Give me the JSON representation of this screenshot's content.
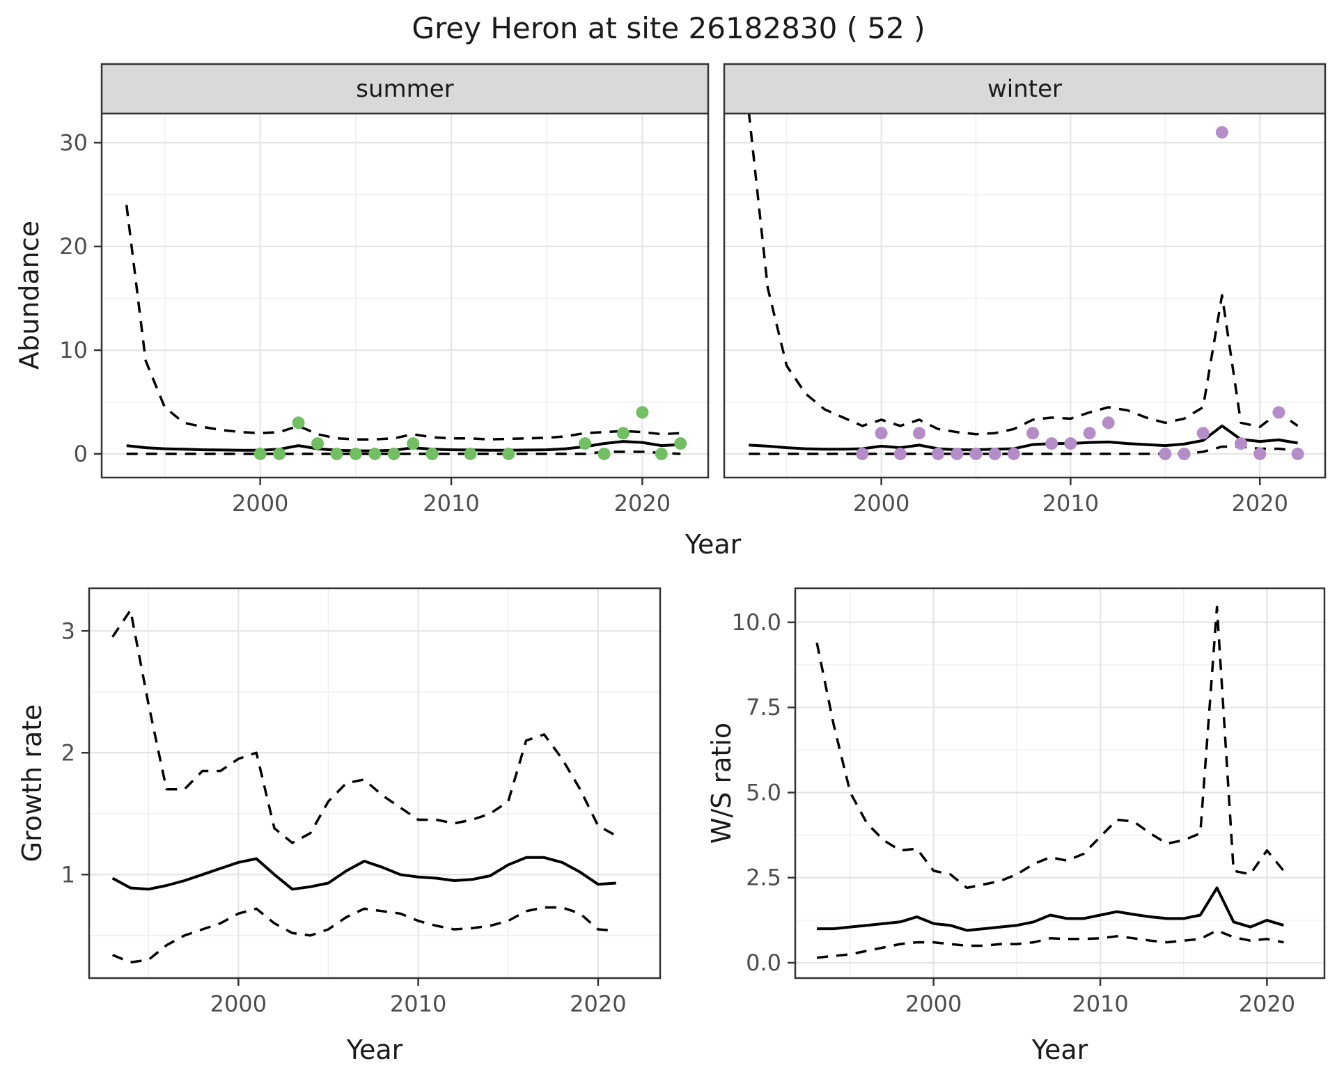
{
  "title": "Grey Heron at site 26182830 ( 52 )",
  "facets": [
    "summer",
    "winter"
  ],
  "axis_labels": {
    "abundance": "Abundance",
    "year": "Year",
    "growth": "Growth rate",
    "ws": "W/S ratio"
  },
  "colors": {
    "summer_point": "#72bf63",
    "winter_point": "#b48cc8",
    "line": "#000000",
    "grid_major": "#e4e4e4",
    "grid_minor": "#f0f0f0",
    "strip_bg": "#d9d9d9",
    "panel_border": "#333333",
    "tick_text": "#4d4d4d",
    "title_text": "#1a1a1a"
  },
  "chart_data": [
    {
      "type": "line",
      "facet": "summer",
      "title": "summer",
      "xlabel": "Year",
      "ylabel": "Abundance",
      "xlim": [
        1991.7,
        2023.45
      ],
      "ylim": [
        -2.28,
        32.82
      ],
      "grid": true,
      "xticks": {
        "major": [
          2000,
          2010,
          2020
        ],
        "minor": [
          1995,
          2005,
          2015
        ],
        "labels": [
          "2000",
          "2010",
          "2020"
        ]
      },
      "yticks": {
        "major": [
          0,
          10,
          20,
          30
        ],
        "minor": [
          5,
          15,
          25
        ],
        "labels": [
          "0",
          "10",
          "20",
          "30"
        ]
      },
      "x": [
        1993,
        1994,
        1995,
        1996,
        1997,
        1998,
        1999,
        2000,
        2001,
        2002,
        2003,
        2004,
        2005,
        2006,
        2007,
        2008,
        2009,
        2010,
        2011,
        2012,
        2013,
        2014,
        2015,
        2016,
        2017,
        2018,
        2019,
        2020,
        2021,
        2022
      ],
      "series": [
        {
          "name": "median_fit",
          "style": "solid",
          "values": [
            0.8,
            0.6,
            0.5,
            0.45,
            0.4,
            0.38,
            0.36,
            0.35,
            0.45,
            0.8,
            0.5,
            0.35,
            0.3,
            0.3,
            0.35,
            0.6,
            0.45,
            0.4,
            0.38,
            0.35,
            0.35,
            0.38,
            0.4,
            0.5,
            0.7,
            1.0,
            1.2,
            1.1,
            0.8,
            0.9
          ]
        },
        {
          "name": "upper_95ci",
          "style": "dashed",
          "values": [
            24,
            9,
            4.5,
            3.0,
            2.6,
            2.3,
            2.1,
            2.0,
            2.1,
            2.7,
            1.9,
            1.5,
            1.4,
            1.4,
            1.5,
            1.9,
            1.6,
            1.5,
            1.5,
            1.4,
            1.45,
            1.5,
            1.55,
            1.7,
            2.0,
            2.1,
            2.2,
            2.1,
            1.9,
            2.0
          ]
        },
        {
          "name": "lower_95ci",
          "style": "dashed",
          "values": [
            0,
            0,
            0,
            0,
            0,
            0,
            0,
            0,
            0,
            0,
            0,
            0,
            0,
            0,
            0,
            0,
            0,
            0,
            0,
            0,
            0,
            0,
            0,
            0,
            0,
            0.2,
            0.2,
            0.2,
            0.1,
            0
          ]
        }
      ],
      "points": {
        "name": "observed_summer_counts",
        "color_key": "summer_point",
        "data": [
          [
            2000,
            0
          ],
          [
            2001,
            0
          ],
          [
            2002,
            3
          ],
          [
            2003,
            1
          ],
          [
            2004,
            0
          ],
          [
            2005,
            0
          ],
          [
            2006,
            0
          ],
          [
            2007,
            0
          ],
          [
            2008,
            1
          ],
          [
            2009,
            0
          ],
          [
            2011,
            0
          ],
          [
            2013,
            0
          ],
          [
            2017,
            1
          ],
          [
            2018,
            0
          ],
          [
            2019,
            2
          ],
          [
            2020,
            4
          ],
          [
            2021,
            0
          ],
          [
            2022,
            1
          ]
        ]
      }
    },
    {
      "type": "line",
      "facet": "winter",
      "title": "winter",
      "xlabel": "Year",
      "ylabel": "Abundance",
      "xlim": [
        1991.7,
        2023.45
      ],
      "ylim": [
        -2.28,
        32.82
      ],
      "grid": true,
      "xticks": {
        "major": [
          2000,
          2010,
          2020
        ],
        "minor": [
          1995,
          2005,
          2015
        ],
        "labels": [
          "2000",
          "2010",
          "2020"
        ]
      },
      "yticks": {
        "major": [
          0,
          10,
          20,
          30
        ],
        "minor": [
          5,
          15,
          25
        ],
        "labels": [
          "0",
          "10",
          "20",
          "30"
        ]
      },
      "x": [
        1993,
        1994,
        1995,
        1996,
        1997,
        1998,
        1999,
        2000,
        2001,
        2002,
        2003,
        2004,
        2005,
        2006,
        2007,
        2008,
        2009,
        2010,
        2011,
        2012,
        2013,
        2014,
        2015,
        2016,
        2017,
        2018,
        2019,
        2020,
        2021,
        2022
      ],
      "series": [
        {
          "name": "median_fit",
          "style": "solid",
          "values": [
            0.85,
            0.75,
            0.6,
            0.5,
            0.45,
            0.45,
            0.5,
            0.75,
            0.6,
            0.85,
            0.5,
            0.4,
            0.4,
            0.45,
            0.5,
            0.9,
            1.0,
            1.0,
            1.1,
            1.15,
            1.0,
            0.9,
            0.8,
            0.95,
            1.3,
            2.7,
            1.4,
            1.2,
            1.35,
            1.05
          ]
        },
        {
          "name": "upper_95ci",
          "style": "dashed",
          "values": [
            33,
            16,
            8.5,
            5.8,
            4.3,
            3.5,
            2.7,
            3.3,
            2.7,
            3.3,
            2.4,
            2.1,
            1.9,
            2.0,
            2.4,
            3.3,
            3.5,
            3.4,
            4.0,
            4.5,
            4.2,
            3.5,
            3.0,
            3.4,
            4.5,
            15.3,
            3.0,
            2.6,
            4.0,
            2.7
          ]
        },
        {
          "name": "lower_95ci",
          "style": "dashed",
          "values": [
            0,
            0,
            0,
            0,
            0,
            0,
            0,
            0,
            0,
            0,
            0,
            0,
            0,
            0,
            0,
            0,
            0,
            0,
            0,
            0,
            0,
            0,
            0,
            0,
            0.2,
            0.7,
            0.7,
            0.5,
            0.5,
            0.3
          ]
        }
      ],
      "points": {
        "name": "observed_winter_counts",
        "color_key": "winter_point",
        "data": [
          [
            1999,
            0
          ],
          [
            2000,
            2
          ],
          [
            2001,
            0
          ],
          [
            2002,
            2
          ],
          [
            2003,
            0
          ],
          [
            2004,
            0
          ],
          [
            2005,
            0
          ],
          [
            2006,
            0
          ],
          [
            2007,
            0
          ],
          [
            2008,
            2
          ],
          [
            2009,
            1
          ],
          [
            2010,
            1
          ],
          [
            2011,
            2
          ],
          [
            2012,
            3
          ],
          [
            2015,
            0
          ],
          [
            2016,
            0
          ],
          [
            2017,
            2
          ],
          [
            2018,
            31
          ],
          [
            2019,
            1
          ],
          [
            2020,
            0
          ],
          [
            2021,
            4
          ],
          [
            2022,
            0
          ]
        ]
      }
    },
    {
      "type": "line",
      "facet": null,
      "title": "",
      "xlabel": "Year",
      "ylabel": "Growth rate",
      "xlim": [
        1991.7,
        2023.45
      ],
      "ylim": [
        0.15,
        3.35
      ],
      "grid": true,
      "xticks": {
        "major": [
          2000,
          2010,
          2020
        ],
        "minor": [
          1995,
          2005,
          2015
        ],
        "labels": [
          "2000",
          "2010",
          "2020"
        ]
      },
      "yticks": {
        "major": [
          1,
          2,
          3
        ],
        "minor": [
          0.5,
          1.5,
          2.5
        ],
        "labels": [
          "1",
          "2",
          "3"
        ]
      },
      "x": [
        1993,
        1994,
        1995,
        1996,
        1997,
        1998,
        1999,
        2000,
        2001,
        2002,
        2003,
        2004,
        2005,
        2006,
        2007,
        2008,
        2009,
        2010,
        2011,
        2012,
        2013,
        2014,
        2015,
        2016,
        2017,
        2018,
        2019,
        2020,
        2021
      ],
      "series": [
        {
          "name": "median_fit",
          "style": "solid",
          "values": [
            0.97,
            0.89,
            0.88,
            0.91,
            0.95,
            1.0,
            1.05,
            1.1,
            1.13,
            1.0,
            0.88,
            0.9,
            0.93,
            1.03,
            1.11,
            1.06,
            1.0,
            0.98,
            0.97,
            0.95,
            0.96,
            0.99,
            1.08,
            1.14,
            1.14,
            1.1,
            1.02,
            0.92,
            0.93
          ]
        },
        {
          "name": "upper_95ci",
          "style": "dashed",
          "values": [
            2.95,
            3.17,
            2.4,
            1.7,
            1.7,
            1.85,
            1.85,
            1.95,
            2.0,
            1.38,
            1.26,
            1.34,
            1.6,
            1.75,
            1.78,
            1.65,
            1.55,
            1.45,
            1.45,
            1.42,
            1.45,
            1.5,
            1.6,
            2.1,
            2.15,
            1.95,
            1.7,
            1.4,
            1.32
          ]
        },
        {
          "name": "lower_95ci",
          "style": "dashed",
          "values": [
            0.34,
            0.28,
            0.3,
            0.42,
            0.5,
            0.55,
            0.6,
            0.68,
            0.72,
            0.6,
            0.52,
            0.5,
            0.55,
            0.65,
            0.72,
            0.7,
            0.68,
            0.62,
            0.58,
            0.55,
            0.56,
            0.58,
            0.62,
            0.7,
            0.73,
            0.73,
            0.68,
            0.55,
            0.54
          ]
        }
      ],
      "points": null
    },
    {
      "type": "line",
      "facet": null,
      "title": "",
      "xlabel": "Year",
      "ylabel": "W/S ratio",
      "xlim": [
        1991.7,
        2023.45
      ],
      "ylim": [
        -0.45,
        11.0
      ],
      "grid": true,
      "xticks": {
        "major": [
          2000,
          2010,
          2020
        ],
        "minor": [
          1995,
          2005,
          2015
        ],
        "labels": [
          "2000",
          "2010",
          "2020"
        ]
      },
      "yticks": {
        "major": [
          0,
          2.5,
          5,
          7.5,
          10
        ],
        "minor": [
          1.25,
          3.75,
          6.25,
          8.75
        ],
        "labels": [
          "0.0",
          "2.5",
          "5.0",
          "7.5",
          "10.0"
        ]
      },
      "x": [
        1993,
        1994,
        1995,
        1996,
        1997,
        1998,
        1999,
        2000,
        2001,
        2002,
        2003,
        2004,
        2005,
        2006,
        2007,
        2008,
        2009,
        2010,
        2011,
        2012,
        2013,
        2014,
        2015,
        2016,
        2017,
        2018,
        2019,
        2020,
        2021
      ],
      "series": [
        {
          "name": "median_fit",
          "style": "solid",
          "values": [
            1.0,
            1.0,
            1.05,
            1.1,
            1.15,
            1.2,
            1.35,
            1.15,
            1.1,
            0.95,
            1.0,
            1.05,
            1.1,
            1.2,
            1.4,
            1.3,
            1.3,
            1.4,
            1.5,
            1.42,
            1.35,
            1.3,
            1.3,
            1.4,
            2.2,
            1.2,
            1.05,
            1.25,
            1.1
          ]
        },
        {
          "name": "upper_95ci",
          "style": "dashed",
          "values": [
            9.4,
            7.0,
            5.0,
            4.1,
            3.6,
            3.3,
            3.35,
            2.7,
            2.6,
            2.2,
            2.3,
            2.4,
            2.6,
            2.9,
            3.1,
            3.0,
            3.2,
            3.7,
            4.2,
            4.15,
            3.8,
            3.5,
            3.6,
            3.8,
            10.45,
            2.7,
            2.6,
            3.3,
            2.7
          ]
        },
        {
          "name": "lower_95ci",
          "style": "dashed",
          "values": [
            0.15,
            0.2,
            0.25,
            0.35,
            0.45,
            0.55,
            0.6,
            0.6,
            0.55,
            0.5,
            0.5,
            0.55,
            0.55,
            0.6,
            0.72,
            0.7,
            0.7,
            0.72,
            0.78,
            0.72,
            0.65,
            0.6,
            0.65,
            0.7,
            0.95,
            0.75,
            0.65,
            0.7,
            0.6
          ]
        }
      ],
      "points": null
    }
  ]
}
